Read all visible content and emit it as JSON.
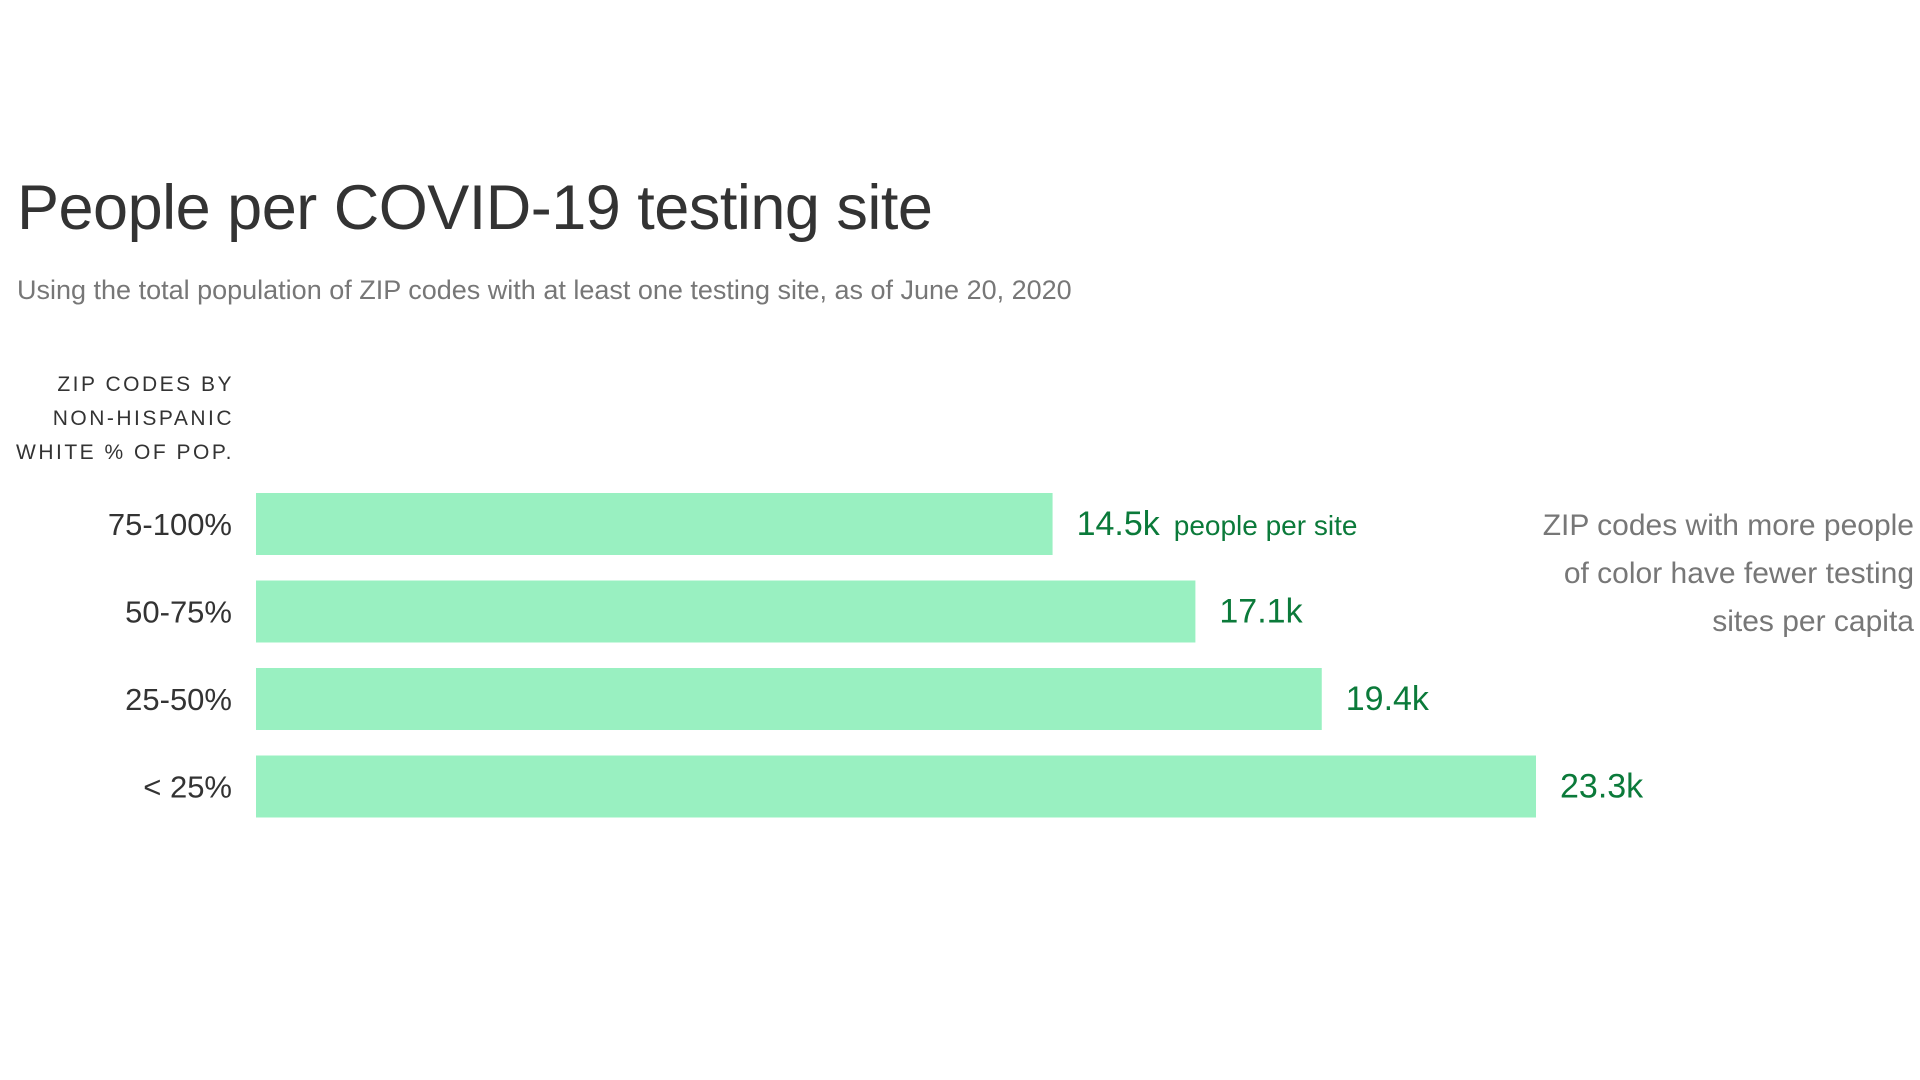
{
  "title": "People per COVID-19 testing site",
  "subtitle": "Using the total population of ZIP codes with at least one testing site, as of June 20, 2020",
  "axis_label_lines": [
    "ZIP codes by",
    "Non-Hispanic",
    "White % of pop."
  ],
  "annotation": "ZIP codes with more people of color have fewer testing sites per capita",
  "colors": {
    "bar": "#99f0c1",
    "value_label": "#0b7a3a",
    "category_label": "#333333",
    "annotation": "#777777"
  },
  "chart_data": {
    "type": "bar",
    "orientation": "horizontal",
    "title": "People per COVID-19 testing site",
    "subtitle": "Using the total population of ZIP codes with at least one testing site, as of June 20, 2020",
    "ylabel": "ZIP codes by Non-Hispanic White % of pop.",
    "categories": [
      "75-100%",
      "50-75%",
      "25-50%",
      "< 25%"
    ],
    "values": [
      14.5,
      17.1,
      19.4,
      23.3
    ],
    "value_labels": [
      "14.5k",
      "17.1k",
      "19.4k",
      "23.3k"
    ],
    "unit_label": "people per site",
    "xlim": [
      0,
      23.3
    ],
    "grid": false
  }
}
